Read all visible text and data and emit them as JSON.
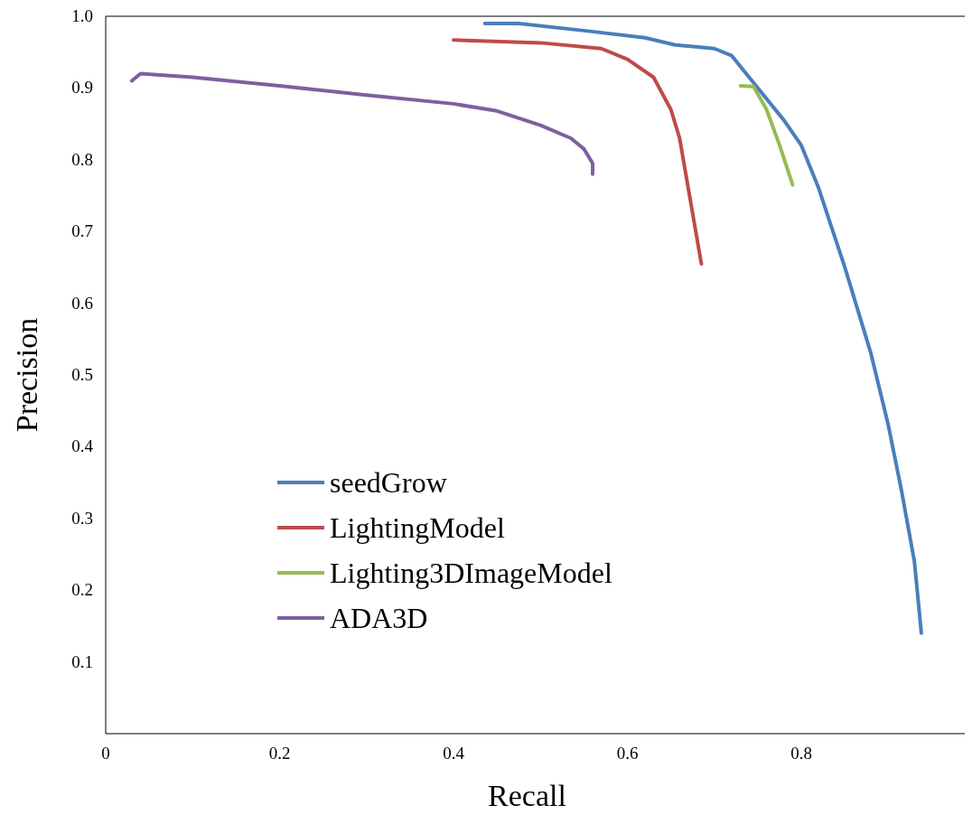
{
  "chart_data": {
    "type": "line",
    "xlabel": "Recall",
    "ylabel": "Precision",
    "xlim": [
      0,
      0.99
    ],
    "ylim": [
      0,
      1
    ],
    "xticks": [
      0,
      0.2,
      0.4,
      0.6,
      0.8
    ],
    "yticks": [
      0.1,
      0.2,
      0.3,
      0.4,
      0.5,
      0.6,
      0.7,
      0.8,
      0.9,
      {
        "value": 1,
        "label": "1.0"
      }
    ],
    "grid": false,
    "legend": "bottom left",
    "marker": "none",
    "line_style": "solid",
    "series": [
      {
        "name": "seedGrow",
        "color": "#4a7ebb",
        "x": [
          0.436,
          0.475,
          0.55,
          0.62,
          0.655,
          0.7,
          0.72,
          0.75,
          0.78,
          0.8,
          0.82,
          0.85,
          0.88,
          0.9,
          0.915,
          0.93,
          0.938
        ],
        "values": [
          0.99,
          0.99,
          0.98,
          0.97,
          0.96,
          0.955,
          0.945,
          0.9,
          0.855,
          0.82,
          0.76,
          0.65,
          0.53,
          0.43,
          0.34,
          0.24,
          0.14
        ]
      },
      {
        "name": "LightingModel",
        "color": "#be4b48",
        "x": [
          0.4,
          0.5,
          0.57,
          0.6,
          0.63,
          0.65,
          0.66,
          0.67,
          0.685
        ],
        "values": [
          0.967,
          0.963,
          0.955,
          0.94,
          0.915,
          0.87,
          0.83,
          0.76,
          0.655
        ]
      },
      {
        "name": "Lighting3DImageModel",
        "color": "#98b954",
        "x": [
          0.73,
          0.745,
          0.76,
          0.775,
          0.79
        ],
        "values": [
          0.903,
          0.902,
          0.87,
          0.82,
          0.765
        ]
      },
      {
        "name": "ADA3D",
        "color": "#7d60a0",
        "x": [
          0.03,
          0.04,
          0.1,
          0.2,
          0.3,
          0.4,
          0.45,
          0.5,
          0.535,
          0.55,
          0.56,
          0.56
        ],
        "values": [
          0.91,
          0.92,
          0.915,
          0.903,
          0.89,
          0.878,
          0.868,
          0.848,
          0.83,
          0.815,
          0.795,
          0.78
        ]
      }
    ]
  }
}
